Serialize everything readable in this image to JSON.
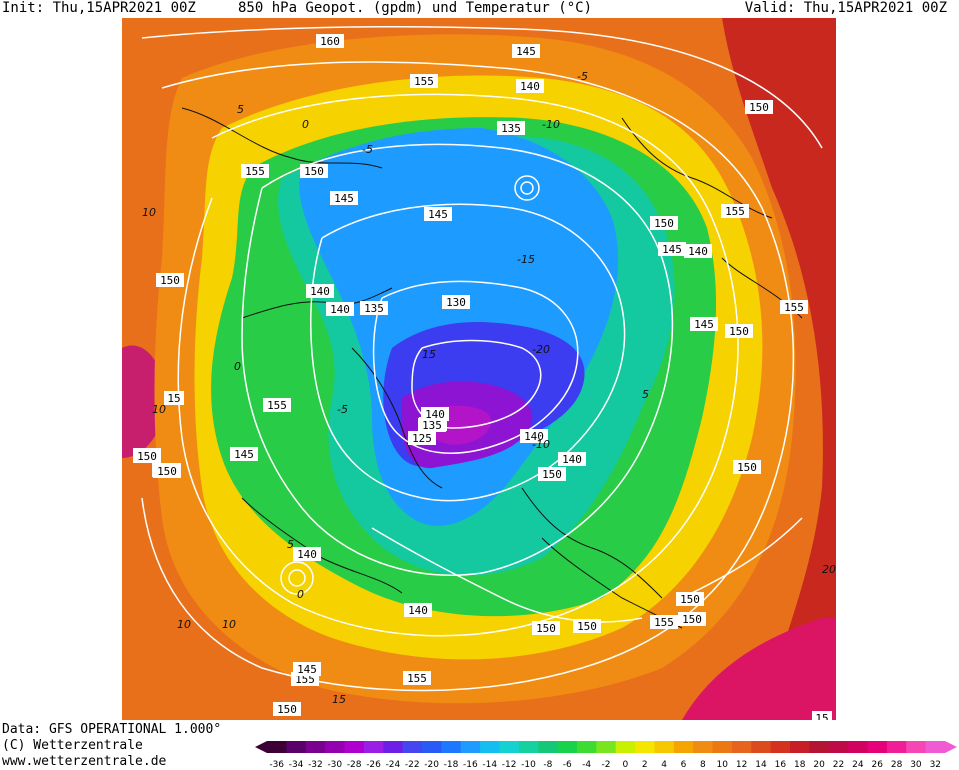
{
  "header": {
    "init": "Init: Thu,15APR2021 00Z",
    "title": "850 hPa Geopot. (gpdm) und Temperatur (°C)",
    "valid": "Valid: Thu,15APR2021 00Z"
  },
  "footer": {
    "data": "Data: GFS OPERATIONAL 1.000°",
    "copyright": "(C) Wetterzentrale",
    "url": "www.wetterzentrale.de"
  },
  "colors": {
    "cold_core": "#7a12c8",
    "green": "#19d24b",
    "yellow": "#f5e600",
    "orange": "#f08a14",
    "red": "#c8201e",
    "magenta": "#e6007a",
    "contour": "#ffffff"
  },
  "geopotential_labels": [
    {
      "text": "160"
    },
    {
      "text": "155"
    },
    {
      "text": "150"
    },
    {
      "text": "145"
    },
    {
      "text": "140"
    },
    {
      "text": "135"
    },
    {
      "text": "130"
    },
    {
      "text": "125"
    },
    {
      "text": "150"
    },
    {
      "text": "155"
    },
    {
      "text": "145"
    },
    {
      "text": "140"
    },
    {
      "text": "135"
    },
    {
      "text": "140"
    },
    {
      "text": "145"
    },
    {
      "text": "150"
    },
    {
      "text": "155"
    },
    {
      "text": "150"
    },
    {
      "text": "145"
    },
    {
      "text": "140"
    },
    {
      "text": "155"
    },
    {
      "text": "150"
    },
    {
      "text": "145"
    },
    {
      "text": "150"
    },
    {
      "text": "150"
    },
    {
      "text": "155"
    },
    {
      "text": "150"
    },
    {
      "text": "140"
    },
    {
      "text": "155"
    },
    {
      "text": "150"
    },
    {
      "text": "150"
    },
    {
      "text": "155"
    },
    {
      "text": "145"
    },
    {
      "text": "150"
    },
    {
      "text": "150"
    },
    {
      "text": "140"
    },
    {
      "text": "145"
    },
    {
      "text": "150"
    },
    {
      "text": "140"
    },
    {
      "text": "150"
    },
    {
      "text": "15"
    },
    {
      "text": "15"
    },
    {
      "text": "150"
    },
    {
      "text": "150"
    },
    {
      "text": "155"
    },
    {
      "text": "150"
    },
    {
      "text": "145"
    },
    {
      "text": "140"
    },
    {
      "text": "135"
    },
    {
      "text": "140"
    }
  ],
  "temperature_labels": [
    "5",
    "10",
    "-5",
    "0",
    "-10",
    "-15",
    "10",
    "15",
    "-20",
    "5",
    "-5",
    "0",
    "10",
    "-10",
    "5",
    "10",
    "15",
    "20",
    "0",
    "-5"
  ],
  "color_scale": {
    "labels": [
      "-36",
      "-34",
      "-32",
      "-30",
      "-28",
      "-26",
      "-24",
      "-22",
      "-20",
      "-18",
      "-16",
      "-14",
      "-12",
      "-10",
      "-8",
      "-6",
      "-4",
      "-2",
      "0",
      "2",
      "4",
      "6",
      "8",
      "10",
      "12",
      "14",
      "16",
      "18",
      "20",
      "22",
      "24",
      "26",
      "28",
      "30",
      "32"
    ],
    "colors": [
      "#3d0036",
      "#5a006b",
      "#7a008f",
      "#9400b0",
      "#b000d0",
      "#9a1ee6",
      "#6e1ee6",
      "#4646f0",
      "#2a5af5",
      "#1e78ff",
      "#1e9bff",
      "#14bef0",
      "#14d2d2",
      "#14d2a0",
      "#14c878",
      "#19d24b",
      "#3cdc32",
      "#78e61e",
      "#c8f000",
      "#f5e600",
      "#f5c800",
      "#f5a500",
      "#f08c14",
      "#eb7814",
      "#e6641e",
      "#dc4b1e",
      "#d2321e",
      "#c81e28",
      "#b41432",
      "#be0a46",
      "#d2005f",
      "#e6007a",
      "#f01e96",
      "#f546b4",
      "#f05ad2"
    ]
  }
}
